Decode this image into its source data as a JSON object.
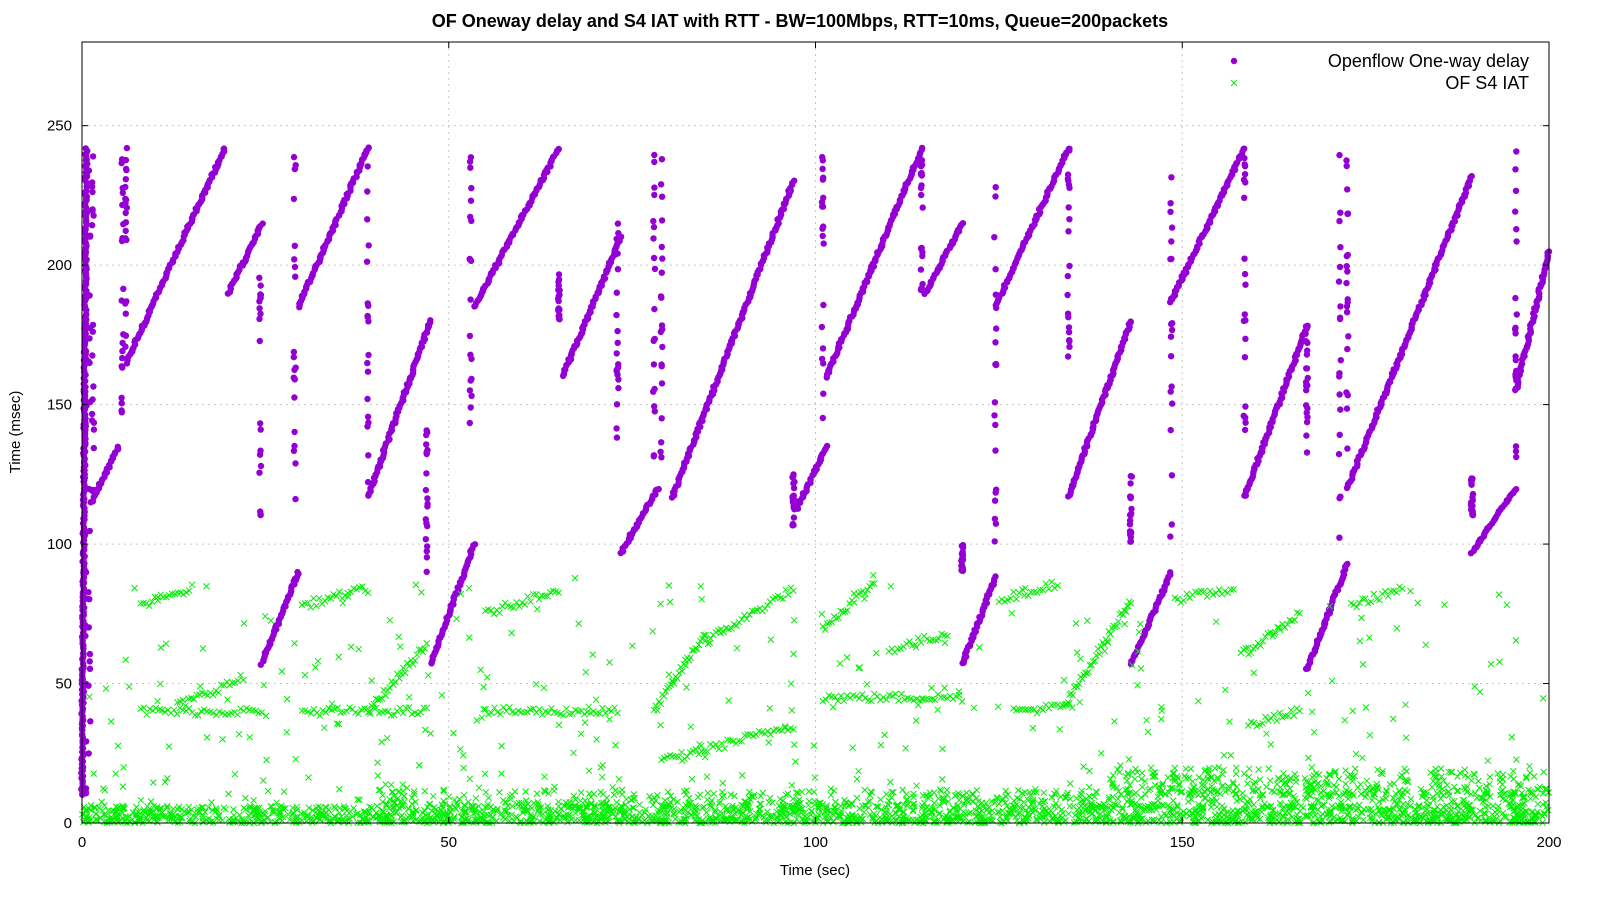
{
  "chart_data": {
    "type": "scatter",
    "title": "OF Oneway delay and S4 IAT with RTT - BW=100Mbps, RTT=10ms, Queue=200packets",
    "xlabel": "Time (sec)",
    "ylabel": "Time (msec)",
    "xlim": [
      0,
      200
    ],
    "ylim": [
      0,
      280
    ],
    "xticks": [
      0,
      50,
      100,
      150,
      200
    ],
    "yticks": [
      0,
      50,
      100,
      150,
      200,
      250
    ],
    "grid": true,
    "legend_position": "top-right",
    "series": [
      {
        "name": "Openflow One-way delay",
        "color": "#9400d3",
        "marker": "dot",
        "segments": [
          {
            "x0": 0.0,
            "y0": 10,
            "x1": 0.6,
            "y1": 242
          },
          {
            "x0": 1.2,
            "y0": 115,
            "x1": 5.0,
            "y1": 135
          },
          {
            "x0": 6.0,
            "y0": 165,
            "x1": 19.5,
            "y1": 242
          },
          {
            "x0": 20.0,
            "y0": 190,
            "x1": 24.5,
            "y1": 215
          },
          {
            "x0": 24.5,
            "y0": 57,
            "x1": 29.5,
            "y1": 90
          },
          {
            "x0": 29.5,
            "y0": 185,
            "x1": 39.0,
            "y1": 242
          },
          {
            "x0": 39.0,
            "y0": 117,
            "x1": 47.5,
            "y1": 180
          },
          {
            "x0": 47.5,
            "y0": 57,
            "x1": 53.5,
            "y1": 100
          },
          {
            "x0": 53.5,
            "y0": 185,
            "x1": 65.0,
            "y1": 242
          },
          {
            "x0": 65.5,
            "y0": 160,
            "x1": 73.5,
            "y1": 210
          },
          {
            "x0": 73.5,
            "y0": 97,
            "x1": 78.5,
            "y1": 120
          },
          {
            "x0": 80.5,
            "y0": 117,
            "x1": 97.0,
            "y1": 230
          },
          {
            "x0": 97.5,
            "y0": 113,
            "x1": 101.5,
            "y1": 135
          },
          {
            "x0": 101.5,
            "y0": 160,
            "x1": 114.5,
            "y1": 242
          },
          {
            "x0": 115.0,
            "y0": 190,
            "x1": 120.0,
            "y1": 215
          },
          {
            "x0": 120.0,
            "y0": 57,
            "x1": 124.5,
            "y1": 88
          },
          {
            "x0": 124.5,
            "y0": 185,
            "x1": 134.5,
            "y1": 242
          },
          {
            "x0": 134.5,
            "y0": 117,
            "x1": 143.0,
            "y1": 180
          },
          {
            "x0": 143.0,
            "y0": 57,
            "x1": 148.5,
            "y1": 90
          },
          {
            "x0": 148.5,
            "y0": 187,
            "x1": 158.5,
            "y1": 242
          },
          {
            "x0": 158.5,
            "y0": 117,
            "x1": 167.0,
            "y1": 178
          },
          {
            "x0": 167.0,
            "y0": 55,
            "x1": 172.5,
            "y1": 93
          },
          {
            "x0": 172.5,
            "y0": 120,
            "x1": 189.5,
            "y1": 232
          },
          {
            "x0": 189.5,
            "y0": 97,
            "x1": 195.5,
            "y1": 120
          },
          {
            "x0": 195.5,
            "y0": 155,
            "x1": 200.0,
            "y1": 205
          }
        ],
        "vertical_clusters": [
          {
            "x": 0.5,
            "ymin": 10,
            "ymax": 242
          },
          {
            "x": 1.0,
            "ymin": 20,
            "ymax": 243
          },
          {
            "x": 1.5,
            "ymin": 116,
            "ymax": 240
          },
          {
            "x": 5.5,
            "ymin": 140,
            "ymax": 242
          },
          {
            "x": 6.0,
            "ymin": 170,
            "ymax": 242
          },
          {
            "x": 24.3,
            "ymin": 110,
            "ymax": 200
          },
          {
            "x": 29.0,
            "ymin": 110,
            "ymax": 242
          },
          {
            "x": 39.0,
            "ymin": 120,
            "ymax": 242
          },
          {
            "x": 47.0,
            "ymin": 90,
            "ymax": 150
          },
          {
            "x": 53.0,
            "ymin": 140,
            "ymax": 242
          },
          {
            "x": 65.0,
            "ymin": 180,
            "ymax": 200
          },
          {
            "x": 73.0,
            "ymin": 135,
            "ymax": 220
          },
          {
            "x": 78.0,
            "ymin": 120,
            "ymax": 242
          },
          {
            "x": 79.0,
            "ymin": 130,
            "ymax": 242
          },
          {
            "x": 97.0,
            "ymin": 105,
            "ymax": 125
          },
          {
            "x": 101.0,
            "ymin": 140,
            "ymax": 245
          },
          {
            "x": 114.5,
            "ymin": 190,
            "ymax": 240
          },
          {
            "x": 120.0,
            "ymin": 90,
            "ymax": 100
          },
          {
            "x": 124.5,
            "ymin": 100,
            "ymax": 242
          },
          {
            "x": 134.5,
            "ymin": 165,
            "ymax": 242
          },
          {
            "x": 143.0,
            "ymin": 95,
            "ymax": 125
          },
          {
            "x": 148.5,
            "ymin": 100,
            "ymax": 242
          },
          {
            "x": 158.5,
            "ymin": 140,
            "ymax": 242
          },
          {
            "x": 167.0,
            "ymin": 130,
            "ymax": 180
          },
          {
            "x": 171.5,
            "ymin": 100,
            "ymax": 242
          },
          {
            "x": 172.5,
            "ymin": 130,
            "ymax": 242
          },
          {
            "x": 189.5,
            "ymin": 110,
            "ymax": 125
          },
          {
            "x": 195.5,
            "ymin": 130,
            "ymax": 242
          }
        ]
      },
      {
        "name": "OF S4 IAT",
        "color": "#00ee00",
        "marker": "cross",
        "bands": [
          {
            "x0": 0,
            "x1": 200,
            "y0": 0,
            "y1": 6
          },
          {
            "x0": 40,
            "x1": 200,
            "y0": 6,
            "y1": 12
          },
          {
            "x0": 140,
            "x1": 200,
            "y0": 10,
            "y1": 20
          }
        ],
        "segments": [
          {
            "x0": 8,
            "y0": 40,
            "x1": 24.5,
            "y1": 40
          },
          {
            "x0": 13,
            "y0": 42,
            "x1": 22,
            "y1": 52
          },
          {
            "x0": 30,
            "y0": 40,
            "x1": 47,
            "y1": 40
          },
          {
            "x0": 39,
            "y0": 40,
            "x1": 47,
            "y1": 64
          },
          {
            "x0": 30,
            "y0": 78,
            "x1": 39,
            "y1": 84
          },
          {
            "x0": 8,
            "y0": 78,
            "x1": 15,
            "y1": 84
          },
          {
            "x0": 55,
            "y0": 75,
            "x1": 65,
            "y1": 84
          },
          {
            "x0": 55,
            "y0": 40,
            "x1": 73,
            "y1": 40
          },
          {
            "x0": 78,
            "y0": 40,
            "x1": 85,
            "y1": 68
          },
          {
            "x0": 85,
            "y0": 65,
            "x1": 97,
            "y1": 84
          },
          {
            "x0": 79,
            "y0": 22,
            "x1": 97,
            "y1": 35
          },
          {
            "x0": 101,
            "y0": 45,
            "x1": 120,
            "y1": 45
          },
          {
            "x0": 101,
            "y0": 70,
            "x1": 108,
            "y1": 86
          },
          {
            "x0": 110,
            "y0": 62,
            "x1": 118,
            "y1": 68
          },
          {
            "x0": 125,
            "y0": 80,
            "x1": 133,
            "y1": 86
          },
          {
            "x0": 127,
            "y0": 40,
            "x1": 135,
            "y1": 42
          },
          {
            "x0": 134,
            "y0": 42,
            "x1": 143,
            "y1": 80
          },
          {
            "x0": 149,
            "y0": 80,
            "x1": 157,
            "y1": 84
          },
          {
            "x0": 158,
            "y0": 60,
            "x1": 166,
            "y1": 75
          },
          {
            "x0": 159,
            "y0": 35,
            "x1": 166,
            "y1": 40
          },
          {
            "x0": 173,
            "y0": 78,
            "x1": 180,
            "y1": 84
          }
        ],
        "scatter_regions": [
          {
            "x0": 1,
            "x1": 200,
            "y0": 6,
            "y1": 90,
            "count": 420
          }
        ]
      }
    ]
  }
}
